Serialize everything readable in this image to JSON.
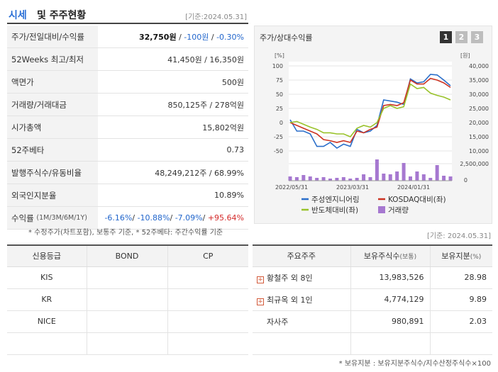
{
  "header": {
    "title_colored": "시세",
    "title_rest": "및 주주현황",
    "date": "[기준:2024.05.31]"
  },
  "table": [
    {
      "label": "주가/전일대비/수익률",
      "price": "32,750원",
      "change": "-100원",
      "rate": "-0.30%"
    },
    {
      "label": "52Weeks 최고/최저",
      "value": "41,450원 / 16,350원"
    },
    {
      "label": "액면가",
      "value": "500원"
    },
    {
      "label": "거래량/거래대금",
      "value": "850,125주 / 278억원"
    },
    {
      "label": "시가총액",
      "value": "15,802억원"
    },
    {
      "label": "52주베타",
      "value": "0.73"
    },
    {
      "label": "발행주식수/유동비율",
      "value": "48,249,212주 / 68.99%"
    },
    {
      "label": "외국인지분율",
      "value": "10.89%"
    },
    {
      "label": "수익률",
      "label_small": "(1M/3M/6M/1Y)",
      "r1": "-6.16%",
      "r2": "-10.88%",
      "r3": "-7.09%",
      "r4": "+95.64%"
    }
  ],
  "note1": "* 수정주가(차트포함), 보통주 기준, * 52주베타: 주간수익률 기준",
  "chart": {
    "title": "주가/상대수익률",
    "buttons": [
      "1",
      "2",
      "3"
    ],
    "colors": {
      "stock": "#2b6fca",
      "kosdaq": "#cc3322",
      "semi": "#99c22a",
      "volume": "#a678d0"
    }
  },
  "chart_data": {
    "type": "line",
    "y_left_unit": "[%]",
    "y_right_unit": "[원]",
    "y_left_ticks": [
      "100",
      "75",
      "50",
      "25",
      "0",
      "-25",
      "-50"
    ],
    "y_right_ticks": [
      "40,000",
      "35,000",
      "30,000",
      "25,000",
      "20,000",
      "15,000",
      "10,000"
    ],
    "volume_tick": "2,500,000",
    "volume_zero": "0",
    "ylim": [
      -50,
      100
    ],
    "x_ticks": [
      "2022/05/31",
      "2023/03/31",
      "2024/01/31"
    ],
    "x": [
      0,
      1,
      2,
      3,
      4,
      5,
      6,
      7,
      8,
      9,
      10,
      11,
      12,
      13,
      14,
      15,
      16,
      17,
      18,
      19,
      20,
      21,
      22,
      23,
      24
    ],
    "series": [
      {
        "name": "주성엔지니어링",
        "values": [
          5,
          -15,
          -15,
          -20,
          -42,
          -42,
          -35,
          -45,
          -38,
          -42,
          -12,
          -18,
          -15,
          -5,
          40,
          38,
          36,
          32,
          77,
          70,
          72,
          85,
          84,
          75,
          65
        ]
      },
      {
        "name": "KOSDAQ대비(좌)",
        "values": [
          0,
          -5,
          -10,
          -15,
          -20,
          -30,
          -32,
          -35,
          -32,
          -35,
          -15,
          -18,
          -12,
          -8,
          30,
          32,
          30,
          35,
          75,
          68,
          68,
          78,
          75,
          70,
          62
        ]
      },
      {
        "name": "반도체대비(좌)",
        "values": [
          0,
          2,
          -3,
          -8,
          -12,
          -18,
          -18,
          -20,
          -20,
          -25,
          -10,
          -5,
          -8,
          0,
          25,
          30,
          25,
          28,
          68,
          60,
          62,
          52,
          48,
          45,
          40
        ]
      },
      {
        "name": "거래량",
        "values": [
          0.6,
          0.5,
          0.8,
          0.6,
          0.4,
          0.5,
          0.3,
          0.4,
          0.5,
          0.3,
          0.4,
          0.9,
          0.5,
          3.0,
          1.0,
          0.9,
          1.3,
          2.5,
          0.6,
          1.3,
          0.9,
          0.4,
          2.2,
          0.7,
          0.6
        ]
      }
    ],
    "legend": [
      "주성엔지니어링",
      "KOSDAQ대비(좌)",
      "반도체대비(좌)",
      "거래량"
    ],
    "legend_position": "bottom"
  },
  "date2": "[기준: 2024.05.31]",
  "credit": {
    "headers": [
      "신용등급",
      "BOND",
      "CP"
    ],
    "rows": [
      [
        "KIS",
        "",
        ""
      ],
      [
        "KR",
        "",
        ""
      ],
      [
        "NICE",
        "",
        ""
      ],
      [
        "",
        "",
        ""
      ]
    ]
  },
  "holders": {
    "headers": [
      "주요주주",
      "보유주식수",
      "(보통)",
      "보유지분",
      "(%)"
    ],
    "rows": [
      {
        "name": "황철주 외 8인",
        "expand": true,
        "shares": "13,983,526",
        "pct": "28.98"
      },
      {
        "name": "최규옥 외 1인",
        "expand": true,
        "shares": "4,774,129",
        "pct": "9.89"
      },
      {
        "name": "자사주",
        "expand": false,
        "shares": "980,891",
        "pct": "2.03"
      }
    ]
  },
  "note2": "* 보유지분 : 보유지분주식수/지수산정주식수×100"
}
